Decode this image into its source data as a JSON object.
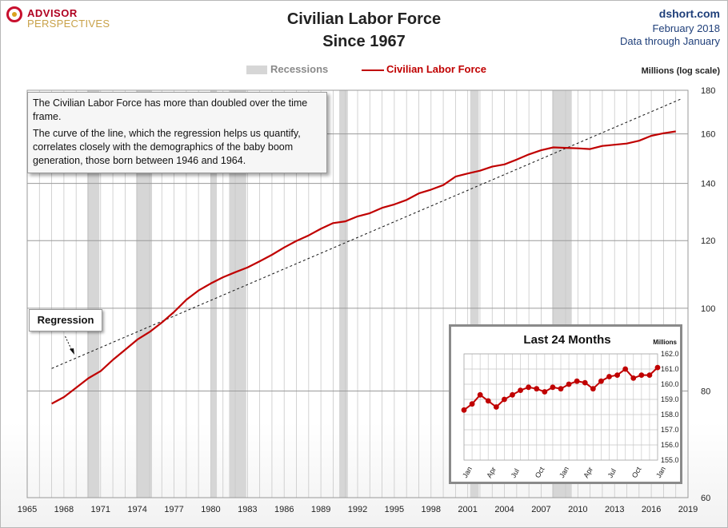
{
  "header": {
    "logo_line1": "ADVISOR",
    "logo_line2": "PERSPECTIVES",
    "title_line1": "Civilian Labor Force",
    "title_line2": "Since 1967",
    "source_site": "dshort.com",
    "source_date": "February 2018",
    "source_through": "Data through January"
  },
  "legend": {
    "recessions_label": "Recessions",
    "series_label": "Civilian Labor Force"
  },
  "annotation": {
    "text1": "The Civilian Labor Force has more than doubled over the time frame.",
    "text2": "The curve of the line, which the regression helps us quantify, correlates closely with the demographics of the baby boom generation, those born between 1946 and 1964.",
    "regression_label": "Regression"
  },
  "colors": {
    "series": "#c00000",
    "recession": "#d6d6d6",
    "grid": "#bdbdbd",
    "regression": "#111111"
  },
  "chart_data": [
    {
      "type": "line",
      "title": "Civilian Labor Force Since 1967",
      "ylabel": "Millions (log scale)",
      "y_scale": "log",
      "xlim": [
        1965,
        2019
      ],
      "ylim": [
        60,
        180
      ],
      "x_ticks": [
        "1965",
        "1968",
        "1971",
        "1974",
        "1977",
        "1980",
        "1983",
        "1986",
        "1989",
        "1992",
        "1995",
        "1998",
        "2001",
        "2004",
        "2007",
        "2010",
        "2013",
        "2016",
        "2019"
      ],
      "y_ticks": [
        60,
        80,
        100,
        120,
        140,
        160,
        180
      ],
      "grid": true,
      "recessions": [
        [
          1969.9,
          1970.9
        ],
        [
          1973.9,
          1975.2
        ],
        [
          1980.0,
          1980.5
        ],
        [
          1981.5,
          1982.9
        ],
        [
          1990.5,
          1991.2
        ],
        [
          2001.2,
          2001.9
        ],
        [
          2007.9,
          2009.5
        ]
      ],
      "series": [
        {
          "name": "Civilian Labor Force",
          "x": [
            1967.0,
            1968.0,
            1969.0,
            1970.0,
            1971.0,
            1972.0,
            1973.0,
            1974.0,
            1975.0,
            1976.0,
            1977.0,
            1978.0,
            1979.0,
            1980.0,
            1981.0,
            1982.0,
            1983.0,
            1984.0,
            1985.0,
            1986.0,
            1987.0,
            1988.0,
            1989.0,
            1990.0,
            1991.0,
            1992.0,
            1993.0,
            1994.0,
            1995.0,
            1996.0,
            1997.0,
            1998.0,
            1999.0,
            2000.0,
            2001.0,
            2002.0,
            2003.0,
            2004.0,
            2005.0,
            2006.0,
            2007.0,
            2008.0,
            2009.0,
            2010.0,
            2011.0,
            2012.0,
            2013.0,
            2014.0,
            2015.0,
            2016.0,
            2017.0,
            2018.0
          ],
          "values": [
            77.3,
            78.7,
            80.7,
            82.8,
            84.4,
            87.0,
            89.4,
            91.9,
            93.8,
            96.2,
            99.0,
            102.3,
            104.9,
            106.9,
            108.7,
            110.2,
            111.6,
            113.5,
            115.5,
            117.8,
            119.9,
            121.7,
            123.9,
            125.8,
            126.4,
            128.1,
            129.2,
            131.1,
            132.3,
            133.9,
            136.3,
            137.7,
            139.4,
            142.6,
            143.8,
            144.9,
            146.5,
            147.4,
            149.3,
            151.4,
            153.1,
            154.3,
            154.1,
            153.9,
            153.6,
            154.9,
            155.4,
            155.9,
            157.1,
            159.2,
            160.3,
            161.1
          ]
        },
        {
          "name": "Regression",
          "x": [
            1967.0,
            2018.5
          ],
          "values": [
            85.0,
            176.0
          ]
        }
      ]
    },
    {
      "type": "line",
      "title": "Last 24 Months",
      "ylabel": "Millions",
      "ylim": [
        155.0,
        162.0
      ],
      "y_ticks": [
        "155.0",
        "156.0",
        "157.0",
        "158.0",
        "159.0",
        "160.0",
        "161.0",
        "162.0"
      ],
      "categories": [
        "Jan",
        "Feb",
        "Mar",
        "Apr",
        "May",
        "Jun",
        "Jul",
        "Aug",
        "Sep",
        "Oct",
        "Nov",
        "Dec",
        "Jan",
        "Feb",
        "Mar",
        "Apr",
        "May",
        "Jun",
        "Jul",
        "Aug",
        "Sep",
        "Oct",
        "Nov",
        "Dec",
        "Jan"
      ],
      "tick_labels": [
        "Jan",
        "Apr",
        "Jul",
        "Oct",
        "Jan",
        "Apr",
        "Jul",
        "Oct",
        "Jan"
      ],
      "grid": true,
      "series": [
        {
          "name": "Civilian Labor Force",
          "values": [
            158.3,
            158.7,
            159.3,
            158.9,
            158.5,
            159.0,
            159.3,
            159.6,
            159.8,
            159.7,
            159.5,
            159.8,
            159.7,
            160.0,
            160.2,
            160.1,
            159.7,
            160.2,
            160.5,
            160.6,
            161.0,
            160.4,
            160.6,
            160.6,
            161.1
          ]
        }
      ]
    }
  ]
}
